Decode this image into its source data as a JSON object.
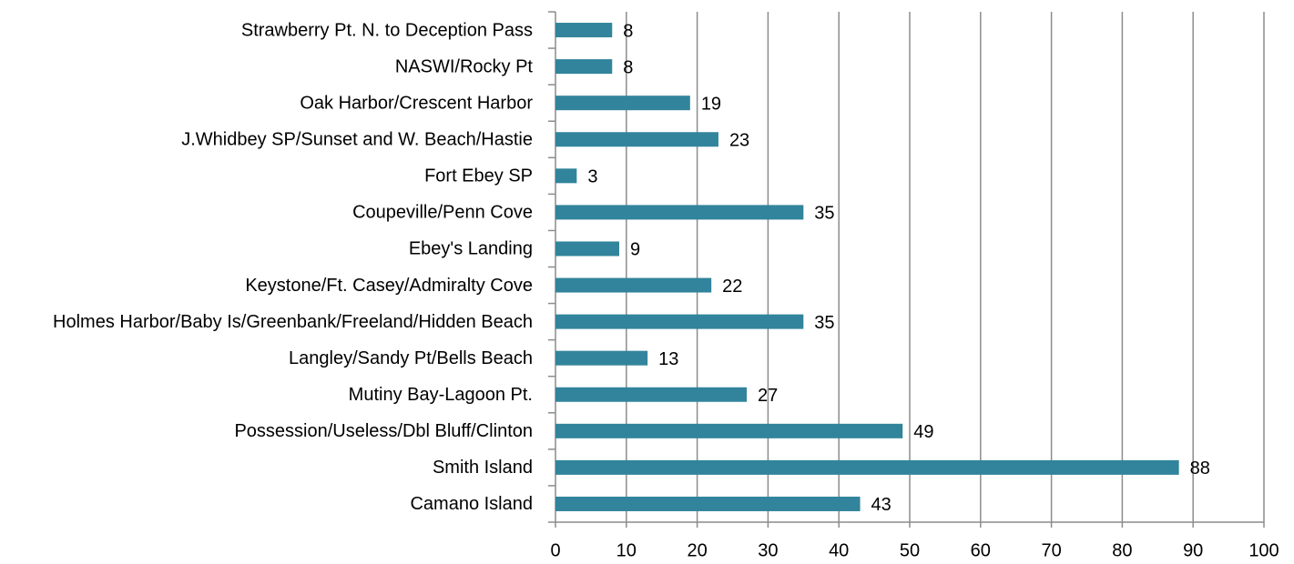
{
  "chart_data": {
    "type": "bar",
    "orientation": "horizontal",
    "categories": [
      "Strawberry Pt. N. to Deception Pass",
      "NASWI/Rocky Pt",
      "Oak Harbor/Crescent Harbor",
      "J.Whidbey SP/Sunset and W. Beach/Hastie",
      "Fort Ebey SP",
      "Coupeville/Penn Cove",
      "Ebey's Landing",
      "Keystone/Ft. Casey/Admiralty Cove",
      "Holmes Harbor/Baby Is/Greenbank/Freeland/Hidden Beach",
      "Langley/Sandy Pt/Bells Beach",
      "Mutiny Bay-Lagoon Pt.",
      "Possession/Useless/Dbl Bluff/Clinton",
      "Smith Island",
      "Camano Island"
    ],
    "values": [
      8,
      8,
      19,
      23,
      3,
      35,
      9,
      22,
      35,
      13,
      27,
      49,
      88,
      43
    ],
    "color": "#31849b",
    "xlim": [
      0,
      100
    ],
    "xticks": [
      0,
      10,
      20,
      30,
      40,
      50,
      60,
      70,
      80,
      90,
      100
    ],
    "grid": true
  }
}
